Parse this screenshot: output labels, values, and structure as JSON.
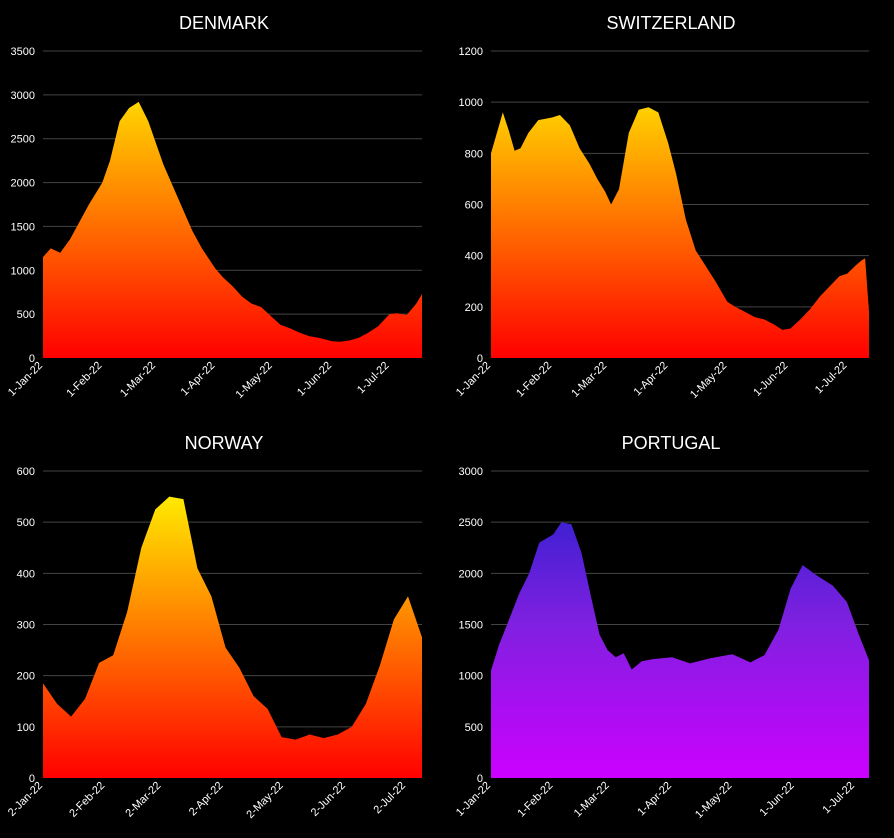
{
  "chart_data": [
    {
      "type": "area",
      "title": "DENMARK",
      "x_tick_labels": [
        "1-Jan-22",
        "1-Feb-22",
        "1-Mar-22",
        "1-Apr-22",
        "1-May-22",
        "1-Jun-22",
        "1-Jul-22"
      ],
      "y_tick_labels": [
        "0",
        "500",
        "1000",
        "1500",
        "2000",
        "2500",
        "3000",
        "3500"
      ],
      "ylim": [
        0,
        3500
      ],
      "x_range": [
        "2022-01-01",
        "2022-07-18"
      ],
      "grid": true,
      "colors": [
        "#ff0000",
        "#ff8000",
        "#ffff00"
      ],
      "x": [
        "2022-01-01",
        "2022-01-05",
        "2022-01-10",
        "2022-01-15",
        "2022-01-20",
        "2022-01-25",
        "2022-02-01",
        "2022-02-05",
        "2022-02-10",
        "2022-02-15",
        "2022-02-20",
        "2022-02-25",
        "2022-03-01",
        "2022-03-05",
        "2022-03-10",
        "2022-03-15",
        "2022-03-20",
        "2022-03-25",
        "2022-04-01",
        "2022-04-05",
        "2022-04-10",
        "2022-04-15",
        "2022-04-20",
        "2022-04-25",
        "2022-05-01",
        "2022-05-05",
        "2022-05-10",
        "2022-05-15",
        "2022-05-20",
        "2022-05-25",
        "2022-06-01",
        "2022-06-05",
        "2022-06-10",
        "2022-06-15",
        "2022-06-20",
        "2022-06-25",
        "2022-07-01",
        "2022-07-05",
        "2022-07-10",
        "2022-07-15",
        "2022-07-18"
      ],
      "values": [
        1150,
        1250,
        1200,
        1350,
        1550,
        1750,
        2000,
        2250,
        2700,
        2850,
        2920,
        2700,
        2450,
        2200,
        1950,
        1700,
        1450,
        1250,
        1020,
        920,
        820,
        700,
        620,
        580,
        460,
        380,
        340,
        290,
        250,
        230,
        190,
        185,
        200,
        230,
        290,
        360,
        500,
        510,
        490,
        620,
        730
      ]
    },
    {
      "type": "area",
      "title": "SWITZERLAND",
      "x_tick_labels": [
        "1-Jan-22",
        "1-Feb-22",
        "1-Mar-22",
        "1-Apr-22",
        "1-May-22",
        "1-Jun-22",
        "1-Jul-22"
      ],
      "y_tick_labels": [
        "0",
        "200",
        "400",
        "600",
        "800",
        "1000",
        "1200"
      ],
      "ylim": [
        0,
        1200
      ],
      "x_range": [
        "2022-01-01",
        "2022-07-12"
      ],
      "grid": true,
      "colors": [
        "#ff0000",
        "#ff8000",
        "#ffff00"
      ],
      "x": [
        "2022-01-01",
        "2022-01-04",
        "2022-01-07",
        "2022-01-10",
        "2022-01-13",
        "2022-01-16",
        "2022-01-20",
        "2022-01-25",
        "2022-02-01",
        "2022-02-05",
        "2022-02-10",
        "2022-02-15",
        "2022-02-20",
        "2022-02-24",
        "2022-02-28",
        "2022-03-03",
        "2022-03-07",
        "2022-03-12",
        "2022-03-17",
        "2022-03-22",
        "2022-03-27",
        "2022-04-01",
        "2022-04-05",
        "2022-04-10",
        "2022-04-15",
        "2022-04-20",
        "2022-04-25",
        "2022-05-01",
        "2022-05-05",
        "2022-05-10",
        "2022-05-15",
        "2022-05-20",
        "2022-05-25",
        "2022-05-29",
        "2022-06-02",
        "2022-06-07",
        "2022-06-12",
        "2022-06-17",
        "2022-06-22",
        "2022-06-27",
        "2022-07-01",
        "2022-07-05",
        "2022-07-08",
        "2022-07-10",
        "2022-07-12"
      ],
      "values": [
        800,
        880,
        960,
        890,
        810,
        820,
        880,
        930,
        940,
        950,
        910,
        820,
        760,
        700,
        650,
        600,
        660,
        880,
        970,
        980,
        960,
        840,
        720,
        540,
        420,
        360,
        300,
        220,
        200,
        180,
        160,
        150,
        130,
        110,
        115,
        150,
        190,
        240,
        280,
        320,
        330,
        360,
        380,
        390,
        180
      ]
    },
    {
      "type": "area",
      "title": "NORWAY",
      "x_tick_labels": [
        "2-Jan-22",
        "2-Feb-22",
        "2-Mar-22",
        "2-Apr-22",
        "2-May-22",
        "2-Jun-22",
        "2-Jul-22"
      ],
      "y_tick_labels": [
        "0",
        "100",
        "200",
        "300",
        "400",
        "500",
        "600"
      ],
      "ylim": [
        0,
        600
      ],
      "x_range": [
        "2022-01-02",
        "2022-07-10"
      ],
      "grid": true,
      "colors": [
        "#ff0000",
        "#ff8000",
        "#ffff00"
      ],
      "x": [
        "2022-01-02",
        "2022-01-09",
        "2022-01-16",
        "2022-01-23",
        "2022-01-30",
        "2022-02-06",
        "2022-02-13",
        "2022-02-20",
        "2022-02-27",
        "2022-03-06",
        "2022-03-13",
        "2022-03-20",
        "2022-03-27",
        "2022-04-03",
        "2022-04-10",
        "2022-04-17",
        "2022-04-24",
        "2022-05-01",
        "2022-05-08",
        "2022-05-15",
        "2022-05-22",
        "2022-05-29",
        "2022-06-05",
        "2022-06-12",
        "2022-06-19",
        "2022-06-26",
        "2022-07-03",
        "2022-07-10"
      ],
      "values": [
        185,
        145,
        120,
        155,
        225,
        240,
        325,
        450,
        525,
        550,
        545,
        410,
        355,
        255,
        215,
        160,
        135,
        80,
        75,
        85,
        78,
        85,
        100,
        145,
        220,
        310,
        355,
        275
      ]
    },
    {
      "type": "area",
      "title": "PORTUGAL",
      "x_tick_labels": [
        "1-Jan-22",
        "1-Feb-22",
        "1-Mar-22",
        "1-Apr-22",
        "1-May-22",
        "1-Jun-22",
        "1-Jul-22"
      ],
      "y_tick_labels": [
        "0",
        "500",
        "1000",
        "1500",
        "2000",
        "2500",
        "3000"
      ],
      "ylim": [
        0,
        3000
      ],
      "x_range": [
        "2022-01-01",
        "2022-07-08"
      ],
      "grid": true,
      "colors": [
        "#cc00ff",
        "#8020e0",
        "#2020cc"
      ],
      "x": [
        "2022-01-01",
        "2022-01-05",
        "2022-01-10",
        "2022-01-15",
        "2022-01-20",
        "2022-01-25",
        "2022-02-01",
        "2022-02-05",
        "2022-02-10",
        "2022-02-15",
        "2022-02-20",
        "2022-02-24",
        "2022-02-28",
        "2022-03-04",
        "2022-03-08",
        "2022-03-12",
        "2022-03-17",
        "2022-03-22",
        "2022-04-01",
        "2022-04-10",
        "2022-04-20",
        "2022-05-01",
        "2022-05-10",
        "2022-05-17",
        "2022-05-24",
        "2022-05-30",
        "2022-06-05",
        "2022-06-12",
        "2022-06-20",
        "2022-06-27",
        "2022-07-03",
        "2022-07-08"
      ],
      "values": [
        1050,
        1300,
        1550,
        1800,
        2000,
        2300,
        2380,
        2500,
        2480,
        2200,
        1750,
        1400,
        1250,
        1180,
        1220,
        1060,
        1140,
        1160,
        1180,
        1120,
        1170,
        1210,
        1130,
        1200,
        1450,
        1850,
        2080,
        1980,
        1880,
        1720,
        1400,
        1150
      ]
    }
  ]
}
